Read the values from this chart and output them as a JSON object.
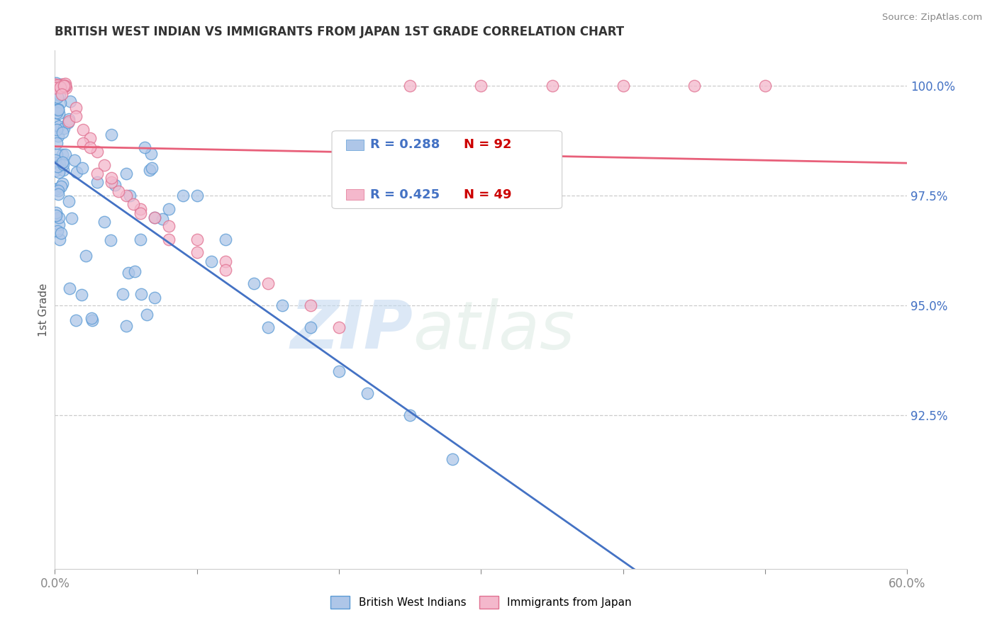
{
  "title": "BRITISH WEST INDIAN VS IMMIGRANTS FROM JAPAN 1ST GRADE CORRELATION CHART",
  "source": "Source: ZipAtlas.com",
  "ylabel": "1st Grade",
  "x_min": 0.0,
  "x_max": 60.0,
  "y_min": 89.0,
  "y_max": 100.8,
  "y_ticks": [
    92.5,
    95.0,
    97.5,
    100.0
  ],
  "series1_label": "British West Indians",
  "series1_R": 0.288,
  "series1_N": 92,
  "series1_color": "#aec6e8",
  "series1_edge_color": "#5b9bd5",
  "series2_label": "Immigrants from Japan",
  "series2_R": 0.425,
  "series2_N": 49,
  "series2_color": "#f4b8cc",
  "series2_edge_color": "#e07090",
  "trendline1_color": "#4472c4",
  "trendline2_color": "#e8607a",
  "background_color": "#ffffff",
  "grid_color": "#cccccc",
  "watermark_zip": "ZIP",
  "watermark_atlas": "atlas",
  "ytick_color": "#4472c4",
  "legend_R_color": "#4472c4",
  "legend_N_color": "#cc0000"
}
